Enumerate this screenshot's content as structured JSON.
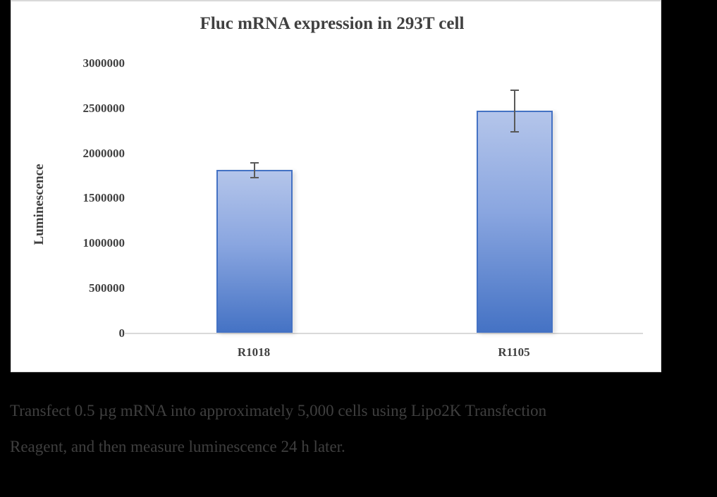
{
  "chart_data": {
    "type": "bar",
    "title": "Fluc mRNA expression in 293T cell",
    "xlabel": "",
    "ylabel": "Luminescence",
    "categories": [
      "R1018",
      "R1105"
    ],
    "values": [
      1810000,
      2465000
    ],
    "error_bars": [
      85000,
      235000
    ],
    "ylim": [
      0,
      3000000
    ],
    "y_ticks": [
      "0",
      "500000",
      "1000000",
      "1500000",
      "2000000",
      "2500000",
      "3000000"
    ],
    "grid": false,
    "legend": null,
    "bar_color": "#4472c4",
    "bar_gradient_top": "#b4c5ea"
  },
  "caption": {
    "line1": "Transfect 0.5 µg mRNA into approximately 5,000 cells using Lipo2K Transfection",
    "line2": "Reagent, and then measure luminescence 24 h later."
  }
}
